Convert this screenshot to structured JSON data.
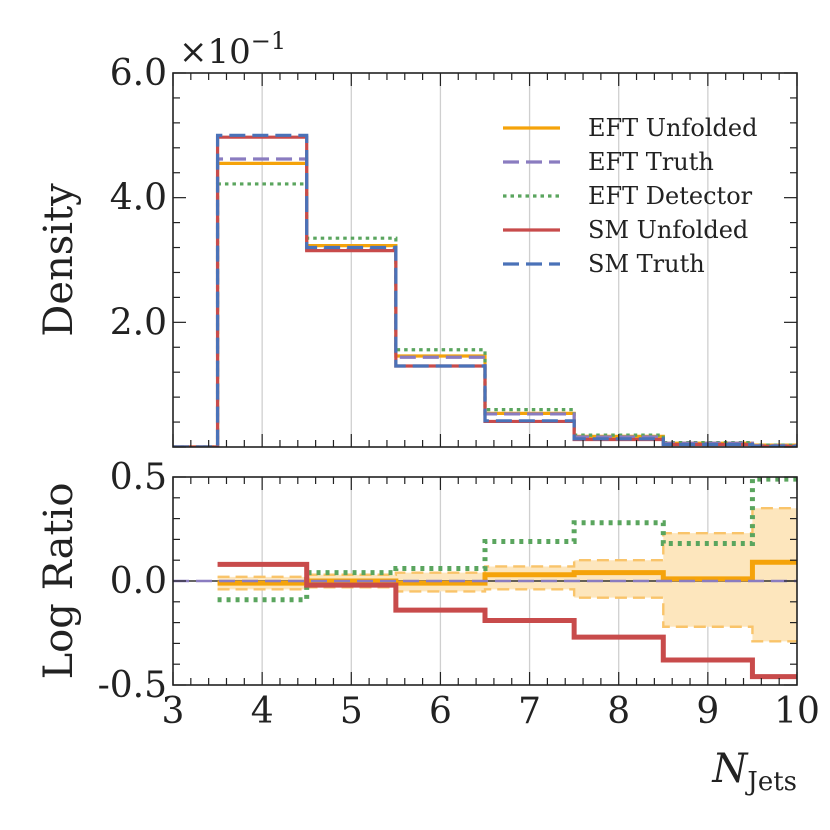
{
  "chart_data": [
    {
      "type": "line",
      "panel": "top",
      "title": "",
      "xlabel": "",
      "ylabel": "Density",
      "y_scale_label": "×10",
      "y_scale_exp": "−1",
      "xlim": [
        3,
        10
      ],
      "ylim": [
        0,
        0.6
      ],
      "yticks": [
        0.2,
        0.4,
        0.6
      ],
      "ytick_labels": [
        "2.0",
        "4.0",
        "6.0"
      ],
      "grid_x": true,
      "legend_position": "top-right",
      "bin_edges": [
        3,
        3.5,
        4.5,
        5.5,
        6.5,
        7.5,
        8.5,
        9.5,
        10
      ],
      "series": [
        {
          "name": "EFT Unfolded",
          "style": "solid",
          "color": "#f5a30a",
          "values": [
            0,
            0.455,
            0.323,
            0.146,
            0.054,
            0.017,
            0.006,
            0.003
          ]
        },
        {
          "name": "EFT Truth",
          "style": "dashed",
          "color": "#8a7cc0",
          "values": [
            0,
            0.462,
            0.317,
            0.144,
            0.053,
            0.016,
            0.006,
            0.002
          ]
        },
        {
          "name": "EFT Detector",
          "style": "dotted",
          "color": "#5aa55e",
          "values": [
            0,
            0.422,
            0.335,
            0.156,
            0.06,
            0.019,
            0.007,
            0.003
          ]
        },
        {
          "name": "SM Unfolded",
          "style": "solid",
          "color": "#c84b4b",
          "values": [
            0,
            0.497,
            0.315,
            0.13,
            0.041,
            0.012,
            0.004,
            0.001
          ]
        },
        {
          "name": "SM Truth",
          "style": "dashed",
          "color": "#4a72b8",
          "values": [
            0,
            0.5,
            0.32,
            0.13,
            0.042,
            0.013,
            0.004,
            0.001
          ]
        }
      ]
    },
    {
      "type": "line",
      "panel": "bottom",
      "title": "",
      "xlabel": "N",
      "xlabel_sub": "Jets",
      "ylabel": "Log Ratio",
      "xlim": [
        3,
        10
      ],
      "ylim": [
        -0.5,
        0.5
      ],
      "xticks": [
        3,
        4,
        5,
        6,
        7,
        8,
        9,
        10
      ],
      "xtick_labels": [
        "3",
        "4",
        "5",
        "6",
        "7",
        "8",
        "9",
        "10"
      ],
      "yticks": [
        -0.5,
        0.0,
        0.5
      ],
      "ytick_labels": [
        "-0.5",
        "0.0",
        "0.5"
      ],
      "grid_x": true,
      "bin_edges": [
        3,
        3.5,
        4.5,
        5.5,
        6.5,
        7.5,
        8.5,
        9.5,
        10
      ],
      "band": {
        "name": "EFT Unfolded uncertainty",
        "color": "#fde6bd",
        "edge_color": "#f9c46a",
        "bin_start": 1,
        "upper": [
          0.02,
          0.03,
          0.04,
          0.07,
          0.1,
          0.23,
          0.35
        ],
        "lower": [
          -0.04,
          -0.03,
          -0.05,
          -0.04,
          -0.08,
          -0.22,
          -0.29
        ]
      },
      "series": [
        {
          "name": "EFT Unfolded",
          "style": "solid",
          "color": "#f5a30a",
          "bin_start": 1,
          "values": [
            -0.01,
            0.0,
            -0.01,
            0.03,
            0.04,
            0.01,
            0.09
          ]
        },
        {
          "name": "EFT Detector",
          "style": "dotted",
          "color": "#5aa55e",
          "bin_start": 1,
          "values": [
            -0.09,
            0.04,
            0.06,
            0.19,
            0.28,
            0.18,
            0.49
          ]
        },
        {
          "name": "SM Unfolded",
          "style": "solid",
          "color": "#c84b4b",
          "bin_start": 1,
          "values": [
            0.08,
            -0.02,
            -0.14,
            -0.19,
            -0.27,
            -0.38,
            -0.46
          ]
        },
        {
          "name": "EFT Truth",
          "style": "dashed",
          "color": "#8a7cc0",
          "bin_start": 0,
          "values": [
            0,
            0,
            0,
            0,
            0,
            0,
            0,
            0
          ]
        }
      ]
    }
  ]
}
